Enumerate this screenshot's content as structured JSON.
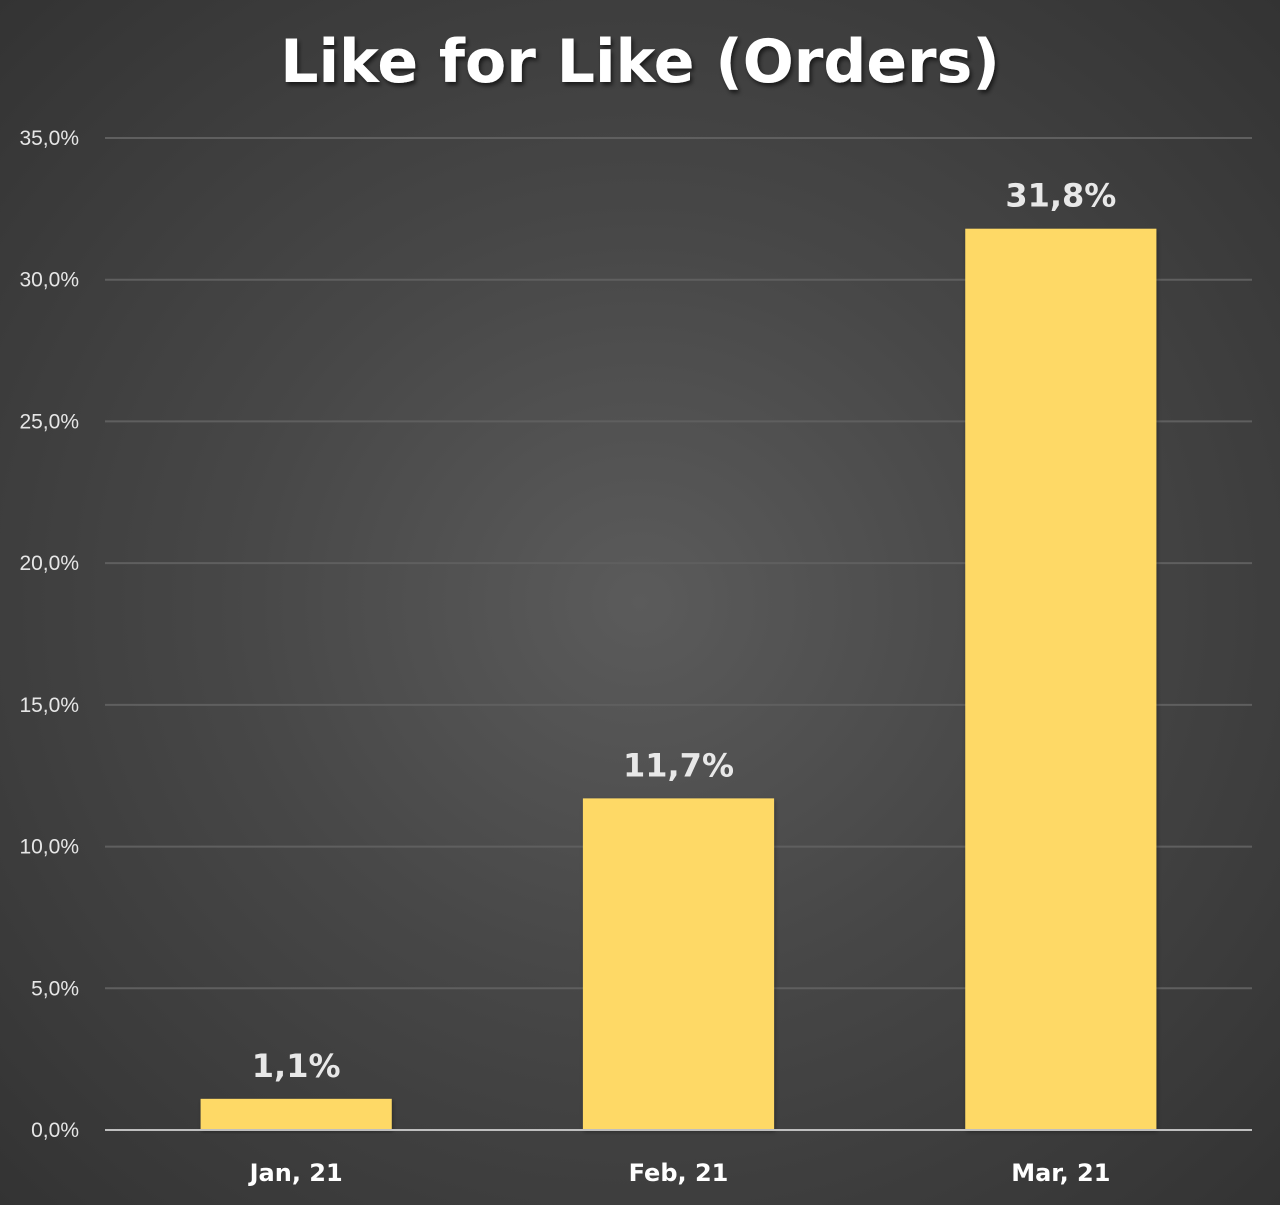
{
  "chart_data": {
    "type": "bar",
    "title": "Like for Like (Orders)",
    "xlabel": "",
    "ylabel": "",
    "categories": [
      "Jan, 21",
      "Feb, 21",
      "Mar, 21"
    ],
    "values": [
      1.1,
      11.7,
      31.8
    ],
    "data_labels": [
      "1,1%",
      "11,7%",
      "31,8%"
    ],
    "y_ticks": [
      0,
      5,
      10,
      15,
      20,
      25,
      30,
      35
    ],
    "y_tick_labels": [
      "0,0%",
      "5,0%",
      "10,0%",
      "15,0%",
      "20,0%",
      "25,0%",
      "30,0%",
      "35,0%"
    ],
    "ylim": [
      0,
      35
    ],
    "grid": true,
    "legend": "none",
    "colors": {
      "bar": "#FED966",
      "grid": "#5f5f5f",
      "axis": "#bfbfbf",
      "title": "#ffffff"
    }
  }
}
